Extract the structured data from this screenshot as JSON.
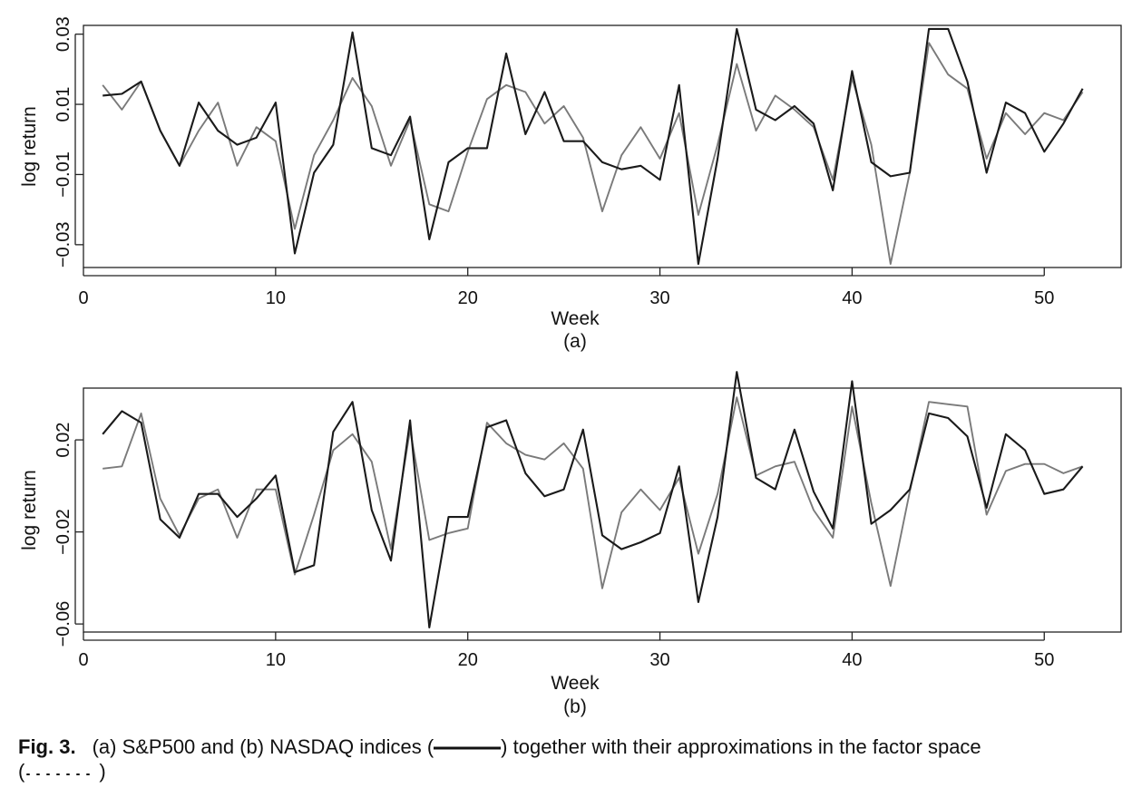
{
  "chart_data": [
    {
      "type": "line",
      "panel_label": "(a)",
      "xlabel": "Week",
      "ylabel": "log return",
      "xlim": [
        0,
        54
      ],
      "ylim": [
        -0.0365,
        0.0325
      ],
      "xticks": [
        0,
        10,
        20,
        30,
        40,
        50
      ],
      "yticks": [
        -0.03,
        -0.01,
        0.01,
        0.03
      ],
      "ytick_labels": [
        "−0.03",
        "−0.01",
        "0.01",
        "0.03"
      ],
      "x": [
        1,
        2,
        3,
        4,
        5,
        6,
        7,
        8,
        9,
        10,
        11,
        12,
        13,
        14,
        15,
        16,
        17,
        18,
        19,
        20,
        21,
        22,
        23,
        24,
        25,
        26,
        27,
        28,
        29,
        30,
        31,
        32,
        33,
        34,
        35,
        36,
        37,
        38,
        39,
        40,
        41,
        42,
        43,
        44,
        45,
        46,
        47,
        48,
        49,
        50,
        51,
        52
      ],
      "series": [
        {
          "style": "solid",
          "color": "#1a1a1a",
          "values": [
            0.0125,
            0.013,
            0.0165,
            0.0025,
            -0.0075,
            0.0105,
            0.0025,
            -0.0015,
            0.0005,
            0.0105,
            -0.0325,
            -0.0095,
            -0.0015,
            0.0305,
            -0.0025,
            -0.0045,
            0.0065,
            -0.0285,
            -0.0065,
            -0.0025,
            -0.0025,
            0.0245,
            0.0015,
            0.0135,
            -0.0005,
            -0.0005,
            -0.0065,
            -0.0085,
            -0.0075,
            -0.0115,
            0.0155,
            -0.0355,
            -0.0055,
            0.0315,
            0.0085,
            0.0055,
            0.0095,
            0.0045,
            -0.0145,
            0.0195,
            -0.0065,
            -0.0105,
            -0.0095,
            0.0315,
            0.0315,
            0.0165,
            -0.0095,
            0.0105,
            0.0075,
            -0.0035,
            0.0045,
            0.0145
          ]
        },
        {
          "style": "approximation",
          "color": "#7a7a7a",
          "values": [
            0.0155,
            0.0085,
            0.0165,
            0.0025,
            -0.0075,
            0.0025,
            0.0105,
            -0.0075,
            0.0035,
            -0.0005,
            -0.0255,
            -0.0045,
            0.0055,
            0.0175,
            0.0095,
            -0.0075,
            0.0055,
            -0.0185,
            -0.0205,
            -0.0035,
            0.0115,
            0.0155,
            0.0135,
            0.0045,
            0.0095,
            0.0005,
            -0.0205,
            -0.0045,
            0.0035,
            -0.0055,
            0.0075,
            -0.0215,
            -0.0015,
            0.0215,
            0.0025,
            0.0125,
            0.0085,
            0.0035,
            -0.0115,
            0.0175,
            -0.0015,
            -0.0355,
            -0.0095,
            0.0275,
            0.0185,
            0.0145,
            -0.0055,
            0.0075,
            0.0015,
            0.0075,
            0.0055,
            0.0135
          ]
        }
      ]
    },
    {
      "type": "line",
      "panel_label": "(b)",
      "xlabel": "Week",
      "ylabel": "log return",
      "xlim": [
        0,
        54
      ],
      "ylim": [
        -0.0635,
        0.0425
      ],
      "xticks": [
        0,
        10,
        20,
        30,
        40,
        50
      ],
      "yticks": [
        -0.06,
        -0.02,
        0.02
      ],
      "ytick_labels": [
        "−0.06",
        "−0.02",
        "0.02"
      ],
      "x": [
        1,
        2,
        3,
        4,
        5,
        6,
        7,
        8,
        9,
        10,
        11,
        12,
        13,
        14,
        15,
        16,
        17,
        18,
        19,
        20,
        21,
        22,
        23,
        24,
        25,
        26,
        27,
        28,
        29,
        30,
        31,
        32,
        33,
        34,
        35,
        36,
        37,
        38,
        39,
        40,
        41,
        42,
        43,
        44,
        45,
        46,
        47,
        48,
        49,
        50,
        51,
        52
      ],
      "series": [
        {
          "style": "solid",
          "color": "#1a1a1a",
          "values": [
            0.0225,
            0.0325,
            0.0275,
            -0.0145,
            -0.0225,
            -0.0035,
            -0.0035,
            -0.0135,
            -0.0055,
            0.0045,
            -0.0375,
            -0.0345,
            0.0235,
            0.0365,
            -0.0105,
            -0.0325,
            0.0285,
            -0.0615,
            -0.0135,
            -0.0135,
            0.0255,
            0.0285,
            0.0055,
            -0.0045,
            -0.0015,
            0.0245,
            -0.0215,
            -0.0275,
            -0.0245,
            -0.0205,
            0.0085,
            -0.0505,
            -0.0135,
            0.0495,
            0.0035,
            -0.0015,
            0.0245,
            -0.0025,
            -0.0185,
            0.0455,
            -0.0165,
            -0.0105,
            -0.0015,
            0.0315,
            0.0295,
            0.0215,
            -0.0095,
            0.0225,
            0.0155,
            -0.0035,
            -0.0015,
            0.0085
          ]
        },
        {
          "style": "approximation",
          "color": "#7a7a7a",
          "values": [
            0.0075,
            0.0085,
            0.0315,
            -0.0055,
            -0.0215,
            -0.0055,
            -0.0015,
            -0.0225,
            -0.0015,
            -0.0015,
            -0.0385,
            -0.0125,
            0.0155,
            0.0225,
            0.0105,
            -0.0275,
            0.0245,
            -0.0235,
            -0.0205,
            -0.0185,
            0.0275,
            0.0185,
            0.0135,
            0.0115,
            0.0185,
            0.0075,
            -0.0445,
            -0.0115,
            -0.0015,
            -0.0105,
            0.0035,
            -0.0295,
            -0.0035,
            0.0385,
            0.0045,
            0.0085,
            0.0105,
            -0.0105,
            -0.0225,
            0.0345,
            -0.0075,
            -0.0435,
            -0.0025,
            0.0365,
            0.0355,
            0.0345,
            -0.0125,
            0.0065,
            0.0095,
            0.0095,
            0.0055,
            0.0085
          ]
        }
      ]
    }
  ],
  "caption": {
    "lead": "Fig. 3.",
    "text_before_solid": "(a) S&P500 and (b) NASDAQ indices (",
    "text_after_solid": ") together with their approximations in the factor space",
    "dotted_open": "(",
    "dotted_close": ")"
  }
}
